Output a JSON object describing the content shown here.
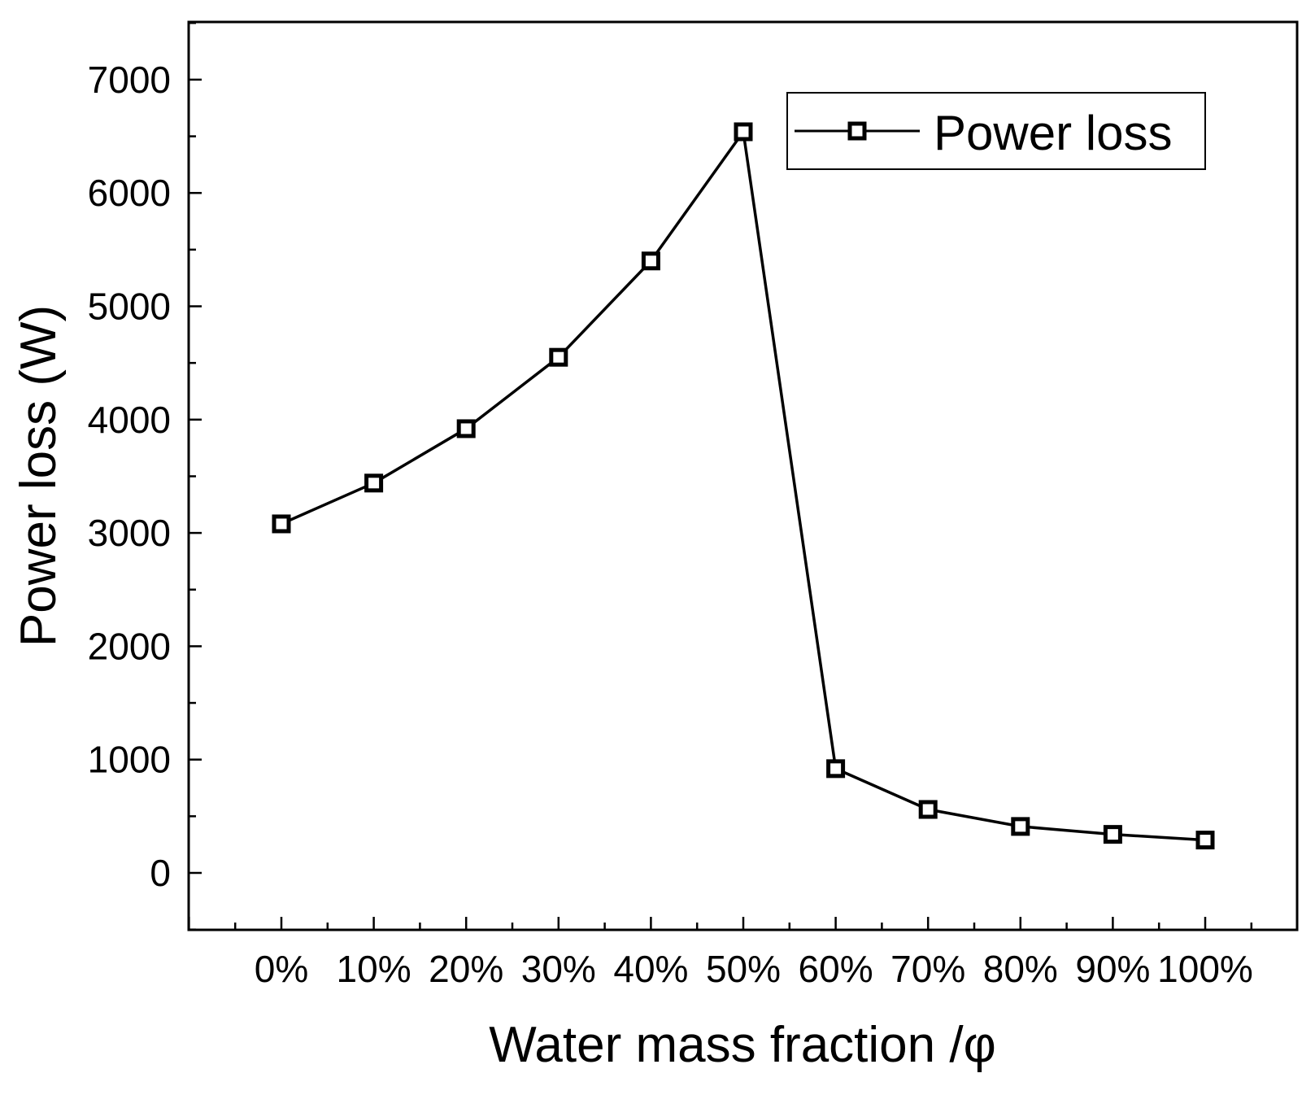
{
  "chart_data": {
    "type": "line",
    "xlabel": "Water mass fraction /φ",
    "ylabel": "Power loss (W)",
    "categories": [
      "0%",
      "10%",
      "20%",
      "30%",
      "40%",
      "50%",
      "60%",
      "70%",
      "80%",
      "90%",
      "100%"
    ],
    "y_ticks": [
      "0",
      "1000",
      "2000",
      "3000",
      "4000",
      "5000",
      "6000",
      "7000"
    ],
    "ylim": [
      -500,
      7500
    ],
    "grid": false,
    "legend_position": "top-right",
    "marker": "open-square",
    "series": [
      {
        "name": "Power loss",
        "color": "#000000",
        "values": [
          3080,
          3440,
          3920,
          4550,
          5400,
          6540,
          920,
          560,
          410,
          340,
          290
        ]
      }
    ]
  }
}
